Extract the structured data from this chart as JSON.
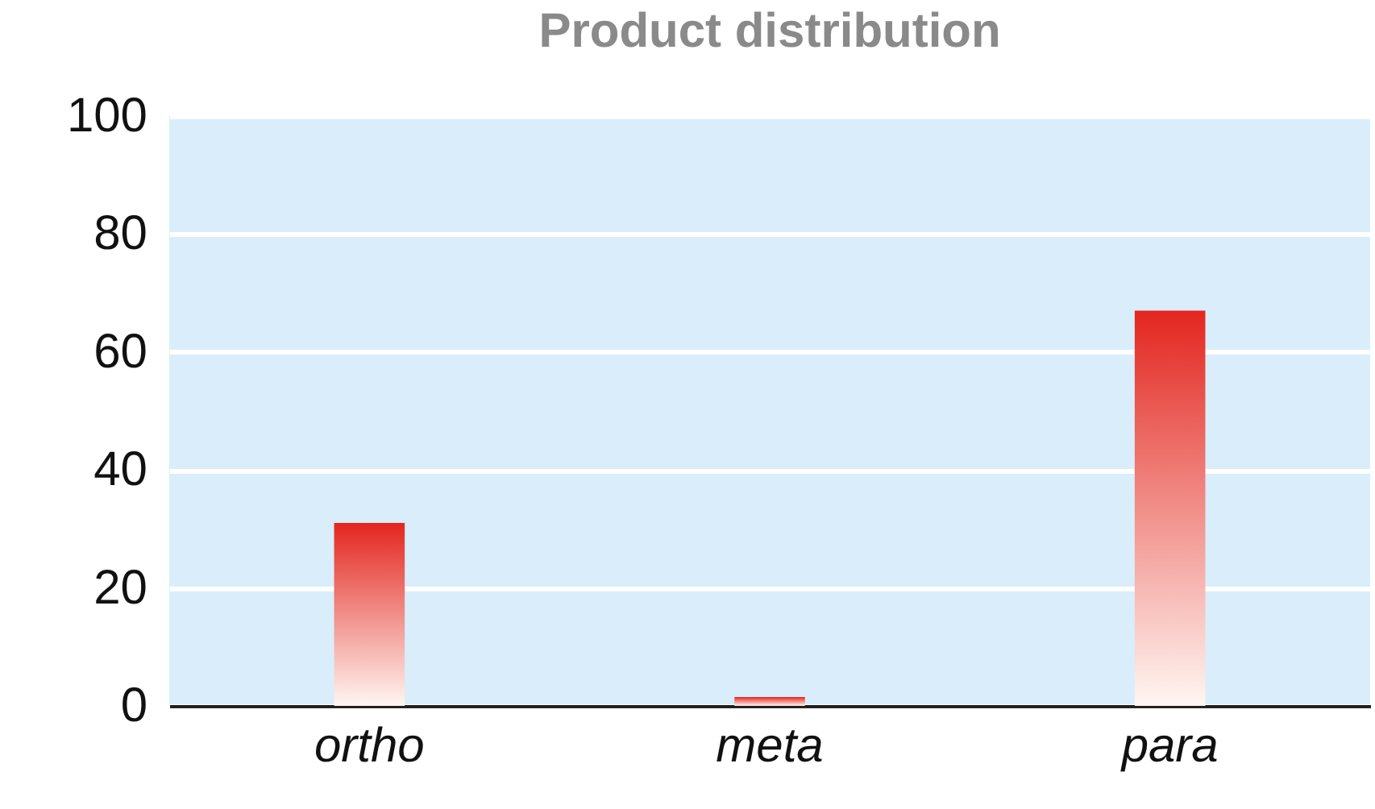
{
  "chart_data": {
    "type": "bar",
    "title": "Product distribution",
    "categories": [
      "ortho",
      "meta",
      "para"
    ],
    "values": [
      31,
      1.5,
      67
    ],
    "color": "#e3261f",
    "ylim": [
      0,
      100
    ],
    "yticks": [
      0,
      20,
      40,
      60,
      80,
      100
    ],
    "grid": "y"
  }
}
